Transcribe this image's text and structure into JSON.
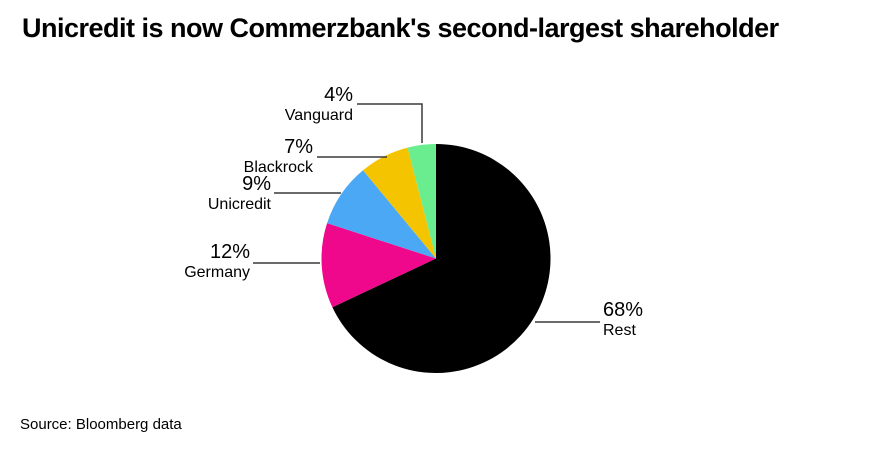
{
  "title": "Unicredit is now Commerzbank's second-largest shareholder",
  "source": "Source: Bloomberg data",
  "chart_data": {
    "type": "pie",
    "title": "Unicredit is now Commerzbank's second-largest shareholder",
    "unit": "%",
    "start_angle_deg": 0,
    "direction": "clockwise",
    "legend_position": "callout-labels",
    "slices": [
      {
        "label": "Rest",
        "value": 68,
        "pct_label": "68%",
        "color": "#000000"
      },
      {
        "label": "Germany",
        "value": 12,
        "pct_label": "12%",
        "color": "#f0088c"
      },
      {
        "label": "Unicredit",
        "value": 9,
        "pct_label": "9%",
        "color": "#4aa8f5"
      },
      {
        "label": "Blackrock",
        "value": 7,
        "pct_label": "7%",
        "color": "#f5c400"
      },
      {
        "label": "Vanguard",
        "value": 4,
        "pct_label": "4%",
        "color": "#69ed8f"
      }
    ]
  }
}
